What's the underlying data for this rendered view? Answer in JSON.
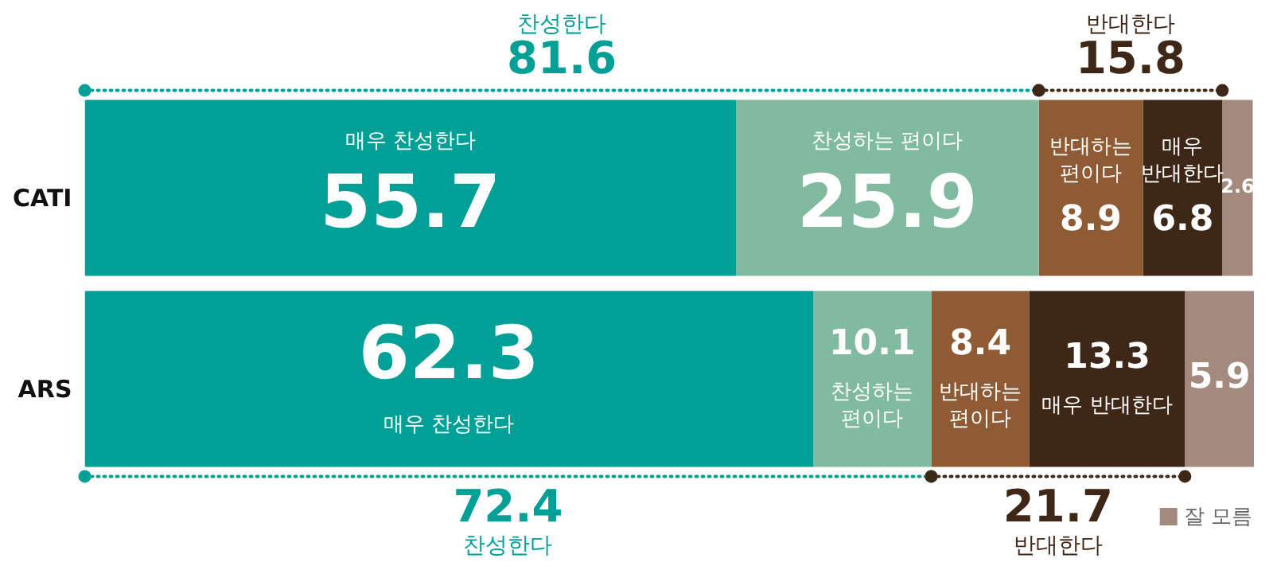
{
  "chart_data": {
    "type": "bar",
    "orientation": "horizontal",
    "stacked": true,
    "categories": [
      "CATI",
      "ARS"
    ],
    "series": [
      {
        "name": "매우 찬성한다",
        "color": "#00a096",
        "values": [
          55.7,
          62.3
        ]
      },
      {
        "name": "찬성하는 편이다",
        "color": "#80bba0",
        "values": [
          25.9,
          10.1
        ]
      },
      {
        "name": "반대하는 편이다",
        "color": "#8e5b34",
        "values": [
          8.9,
          8.4
        ]
      },
      {
        "name": "매우 반대한다",
        "color": "#3f2718",
        "values": [
          6.8,
          13.3
        ]
      },
      {
        "name": "잘 모름",
        "color": "#a38a7c",
        "values": [
          2.6,
          5.9
        ]
      }
    ],
    "data_labels": true,
    "legend": "bottom right",
    "grid": false,
    "annotations": [
      "찬성한다",
      "81.6",
      "반대한다",
      "15.8",
      "72.4",
      "찬성한다",
      "21.7",
      "반대한다"
    ]
  }
}
